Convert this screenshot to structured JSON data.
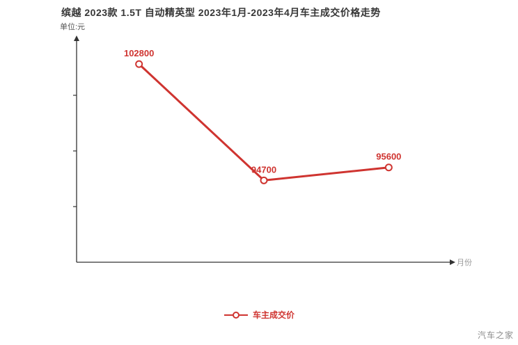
{
  "watermark": "汽车之家",
  "chart_data": {
    "type": "line",
    "title": "缤越 2023款 1.5T 自动精英型 2023年1月-2023年4月车主成交价格走势",
    "unit_label": "单位:元",
    "x_axis_label": "月份",
    "legend": {
      "label": "车主成交价",
      "position": "bottom-center"
    },
    "categories": [
      "",
      "",
      ""
    ],
    "series": [
      {
        "name": "车主成交价",
        "values": [
          102800,
          94700,
          95600
        ],
        "point_labels": [
          "102800",
          "94700",
          "95600"
        ]
      }
    ],
    "ylim": [
      89000,
      104500
    ],
    "grid": false,
    "colors": {
      "line": "#cf3430",
      "point_fill": "#ffffff",
      "label": "#cf3430",
      "axis": "#333333",
      "axis_label": "#999999"
    }
  }
}
